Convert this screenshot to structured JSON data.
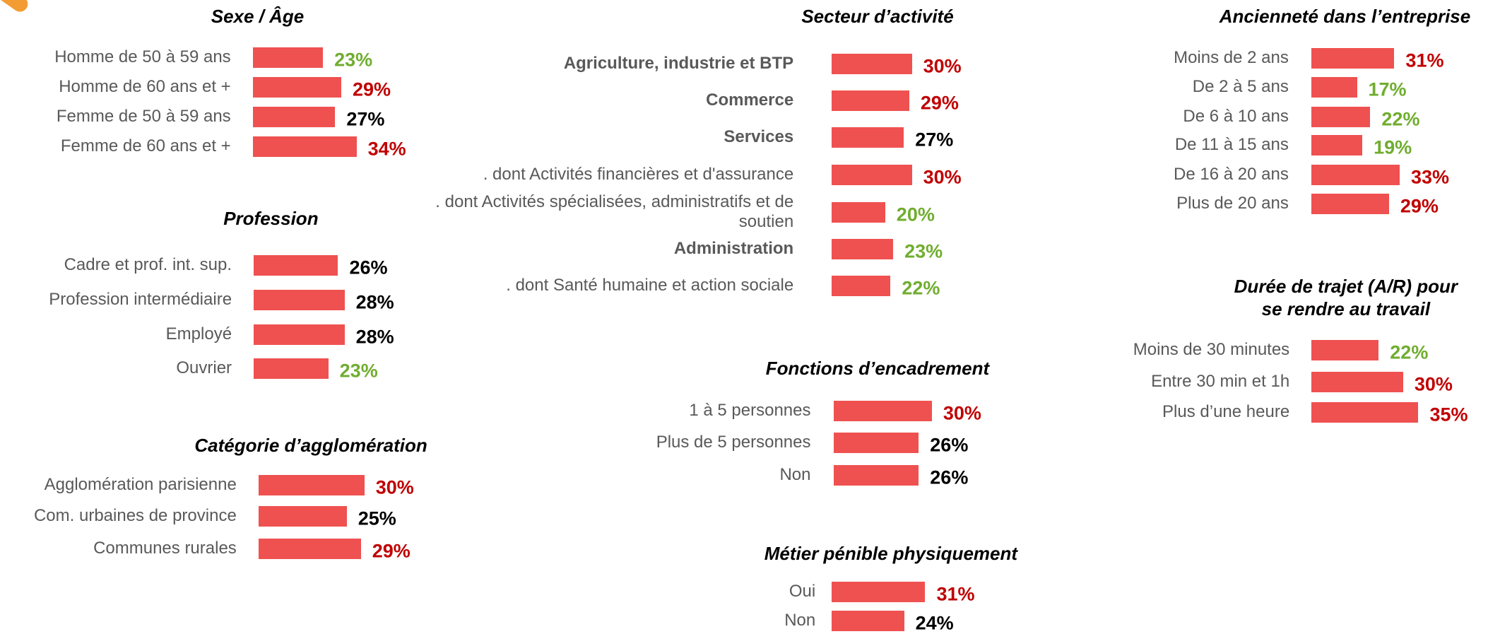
{
  "chart_data": [
    {
      "type": "bar",
      "title": "Sexe / Âge",
      "categories": [
        "Homme de 50 à 59 ans",
        "Homme de 60 ans et +",
        "Femme de 50 à 59 ans",
        "Femme de 60 ans et +"
      ],
      "values": [
        23,
        29,
        27,
        34
      ],
      "value_labels": [
        "23%",
        "29%",
        "27%",
        "34%"
      ],
      "color": "#ef5150",
      "label_colors": [
        "#70ad2f",
        "#c00000",
        "#000000",
        "#c00000"
      ]
    },
    {
      "type": "bar",
      "title": "Profession",
      "categories": [
        "Cadre et prof. int. sup.",
        "Profession intermédiaire",
        "Employé",
        "Ouvrier"
      ],
      "values": [
        26,
        28,
        28,
        23
      ],
      "value_labels": [
        "26%",
        "28%",
        "28%",
        "23%"
      ],
      "color": "#ef5150",
      "label_colors": [
        "#000000",
        "#000000",
        "#000000",
        "#70ad2f"
      ]
    },
    {
      "type": "bar",
      "title": "Catégorie d’agglomération",
      "categories": [
        "Agglomération parisienne",
        "Com. urbaines de province",
        "Communes rurales"
      ],
      "values": [
        30,
        25,
        29
      ],
      "value_labels": [
        "30%",
        "25%",
        "29%"
      ],
      "color": "#ef5150",
      "label_colors": [
        "#c00000",
        "#000000",
        "#c00000"
      ]
    },
    {
      "type": "bar",
      "title": "Secteur d’activité",
      "categories": [
        "Agriculture, industrie et BTP",
        "Commerce",
        "Services",
        ". dont Activités financières et d'assurance",
        ". dont Activités spécialisées, administratifs et de soutien",
        "Administration",
        ". dont Santé humaine et action sociale"
      ],
      "values": [
        30,
        29,
        27,
        30,
        20,
        23,
        22
      ],
      "value_labels": [
        "30%",
        "29%",
        "27%",
        "30%",
        "20%",
        "23%",
        "22%"
      ],
      "color": "#ef5150",
      "label_colors": [
        "#c00000",
        "#c00000",
        "#000000",
        "#c00000",
        "#70ad2f",
        "#70ad2f",
        "#70ad2f"
      ]
    },
    {
      "type": "bar",
      "title": "Fonctions d’encadrement",
      "categories": [
        "1 à 5 personnes",
        "Plus de 5 personnes",
        "Non"
      ],
      "values": [
        30,
        26,
        26
      ],
      "value_labels": [
        "30%",
        "26%",
        "26%"
      ],
      "color": "#ef5150",
      "label_colors": [
        "#c00000",
        "#000000",
        "#000000"
      ]
    },
    {
      "type": "bar",
      "title": "Métier pénible physiquement",
      "categories": [
        "Oui",
        "Non"
      ],
      "values": [
        31,
        24
      ],
      "value_labels": [
        "31%",
        "24%"
      ],
      "color": "#ef5150",
      "label_colors": [
        "#c00000",
        "#000000"
      ]
    },
    {
      "type": "bar",
      "title": "Ancienneté dans l’entreprise",
      "categories": [
        "Moins de 2 ans",
        "De 2 à 5 ans",
        "De 6 à 10 ans",
        "De 11 à 15 ans",
        "De 16 à 20 ans",
        "Plus de 20 ans"
      ],
      "values": [
        31,
        17,
        22,
        19,
        33,
        29
      ],
      "value_labels": [
        "31%",
        "17%",
        "22%",
        "19%",
        "33%",
        "29%"
      ],
      "color": "#ef5150",
      "label_colors": [
        "#c00000",
        "#70ad2f",
        "#70ad2f",
        "#70ad2f",
        "#c00000",
        "#c00000"
      ]
    },
    {
      "type": "bar",
      "title": "Durée de trajet (A/R) pour se rendre au travail",
      "categories": [
        "Moins de 30 minutes",
        "Entre 30 min et 1h",
        "Plus d’une heure"
      ],
      "values": [
        22,
        30,
        35
      ],
      "value_labels": [
        "22%",
        "30%",
        "35%"
      ],
      "color": "#ef5150",
      "label_colors": [
        "#70ad2f",
        "#c00000",
        "#c00000"
      ]
    }
  ]
}
